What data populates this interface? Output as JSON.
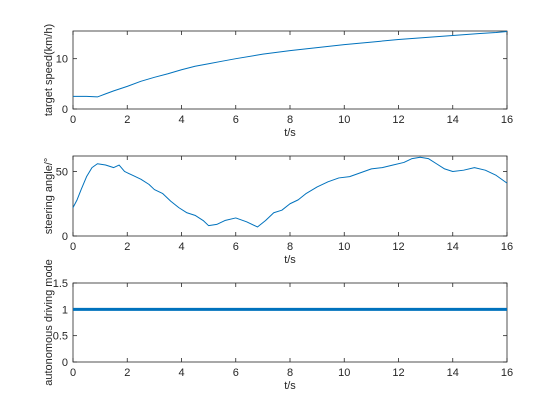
{
  "chart_data": [
    {
      "type": "line",
      "title": "",
      "xlabel": "t/s",
      "ylabel": "target speed(km/h)",
      "xlim": [
        0,
        16
      ],
      "ylim": [
        0,
        15.5
      ],
      "xticks": [
        "0",
        "2",
        "4",
        "6",
        "8",
        "10",
        "12",
        "14",
        "16"
      ],
      "yticks": [
        "0",
        "10"
      ],
      "ytick_values": [
        0,
        10
      ],
      "grid": false,
      "line_color": "#0072bd",
      "series": [
        {
          "x": [
            0,
            0.5,
            0.9,
            1.0,
            1.2,
            1.5,
            2.0,
            2.5,
            3.0,
            3.5,
            4.0,
            4.5,
            5.0,
            5.5,
            6.0,
            7.0,
            8.0,
            9.0,
            10.0,
            11.0,
            12.0,
            13.0,
            14.0,
            15.0,
            15.6,
            16.0
          ],
          "y": [
            2.5,
            2.5,
            2.4,
            2.6,
            3.0,
            3.6,
            4.5,
            5.5,
            6.3,
            7.0,
            7.8,
            8.5,
            9.0,
            9.5,
            10.0,
            10.9,
            11.6,
            12.2,
            12.8,
            13.3,
            13.8,
            14.2,
            14.6,
            15.0,
            15.2,
            15.4
          ]
        }
      ]
    },
    {
      "type": "line",
      "title": "",
      "xlabel": "t/s",
      "ylabel": "steering angle/°",
      "xlim": [
        0,
        16
      ],
      "ylim": [
        0,
        62
      ],
      "xticks": [
        "0",
        "2",
        "4",
        "6",
        "8",
        "10",
        "12",
        "14",
        "16"
      ],
      "yticks": [
        "0",
        "50"
      ],
      "ytick_values": [
        0,
        50
      ],
      "grid": false,
      "line_color": "#0072bd",
      "series": [
        {
          "x": [
            0,
            0.15,
            0.3,
            0.5,
            0.7,
            0.9,
            1.2,
            1.5,
            1.7,
            1.9,
            2.2,
            2.5,
            2.8,
            3.0,
            3.3,
            3.6,
            3.9,
            4.2,
            4.5,
            4.8,
            5.0,
            5.3,
            5.6,
            6.0,
            6.4,
            6.8,
            7.1,
            7.4,
            7.7,
            8.0,
            8.3,
            8.6,
            9.0,
            9.4,
            9.8,
            10.2,
            10.6,
            11.0,
            11.4,
            11.8,
            12.2,
            12.5,
            12.8,
            13.1,
            13.4,
            13.7,
            14.0,
            14.4,
            14.8,
            15.2,
            15.6,
            16.0
          ],
          "y": [
            22,
            28,
            36,
            46,
            53,
            56,
            55,
            53,
            55,
            50,
            47,
            44,
            40,
            36,
            33,
            27,
            22,
            18,
            16,
            12,
            8,
            9,
            12,
            14,
            11,
            7,
            12,
            18,
            20,
            25,
            28,
            33,
            38,
            42,
            45,
            46,
            49,
            52,
            53,
            55,
            57,
            60,
            61,
            60,
            56,
            52,
            50,
            51,
            53,
            51,
            47,
            41
          ]
        }
      ]
    },
    {
      "type": "line",
      "title": "",
      "xlabel": "t/s",
      "ylabel": "autonomous driving mode",
      "xlim": [
        0,
        16
      ],
      "ylim": [
        0,
        1.5
      ],
      "xticks": [
        "0",
        "2",
        "4",
        "6",
        "8",
        "10",
        "12",
        "14",
        "16"
      ],
      "yticks": [
        "0",
        "0.5",
        "1",
        "1.5"
      ],
      "ytick_values": [
        0,
        0.5,
        1,
        1.5
      ],
      "grid": false,
      "line_color": "#0072bd",
      "series": [
        {
          "x": [
            0,
            16
          ],
          "y": [
            1,
            1
          ]
        }
      ]
    }
  ]
}
